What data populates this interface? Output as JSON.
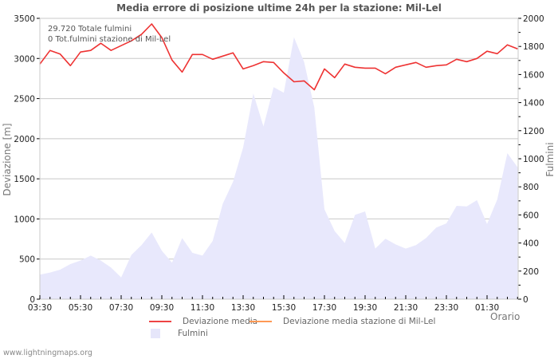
{
  "chart_data": {
    "type": "line",
    "title": "Media errore di posizione ultime 24h per la stazione: Mil-Lel",
    "xlabel": "Orario",
    "ylabel": "Deviazione  [m]",
    "y2label": "Fulmini",
    "ylim": [
      0,
      3500
    ],
    "y2lim": [
      0,
      2000
    ],
    "yticks": [
      0,
      500,
      1000,
      1500,
      2000,
      2500,
      3000,
      3500
    ],
    "y2ticks": [
      0,
      200,
      400,
      600,
      800,
      1000,
      1200,
      1400,
      1600,
      1800,
      2000
    ],
    "xticks": [
      "03:30",
      "05:30",
      "07:30",
      "09:30",
      "11:30",
      "13:30",
      "15:30",
      "17:30",
      "19:30",
      "21:30",
      "23:30",
      "01:30"
    ],
    "grid": true,
    "legend_position": "bottom",
    "annotations": [
      "29.720 Totale fulmini",
      "0 Tot.fulmini stazione di Mil-Lel"
    ],
    "x": [
      "03:30",
      "04:00",
      "04:30",
      "05:00",
      "05:30",
      "06:00",
      "06:30",
      "07:00",
      "07:30",
      "08:00",
      "08:30",
      "09:00",
      "09:30",
      "10:00",
      "10:30",
      "11:00",
      "11:30",
      "12:00",
      "12:30",
      "13:00",
      "13:30",
      "14:00",
      "14:30",
      "15:00",
      "15:30",
      "16:00",
      "16:30",
      "17:00",
      "17:30",
      "18:00",
      "18:30",
      "19:00",
      "19:30",
      "20:00",
      "20:30",
      "21:00",
      "21:30",
      "22:00",
      "22:30",
      "23:00",
      "23:30",
      "00:00",
      "00:30",
      "01:00",
      "01:30",
      "02:00",
      "02:30",
      "03:00"
    ],
    "series": [
      {
        "name": "Deviazione media",
        "axis": "left",
        "type": "line",
        "color": "#ee3333",
        "values": [
          2930,
          3100,
          3055,
          2910,
          3080,
          3100,
          3190,
          3100,
          3160,
          3220,
          3300,
          3430,
          3260,
          2980,
          2830,
          3050,
          3050,
          2990,
          3030,
          3070,
          2870,
          2910,
          2960,
          2950,
          2820,
          2710,
          2720,
          2610,
          2870,
          2760,
          2930,
          2890,
          2880,
          2880,
          2810,
          2890,
          2920,
          2950,
          2890,
          2910,
          2920,
          2990,
          2960,
          3000,
          3090,
          3060,
          3170,
          3120
        ]
      },
      {
        "name": "Deviazione media stazione di Mil-Lel",
        "axis": "left",
        "type": "line",
        "color": "#ff9944",
        "values": []
      },
      {
        "name": "Fulmini",
        "axis": "right",
        "type": "area",
        "color": "#e8e8fc",
        "values": [
          175,
          190,
          210,
          250,
          275,
          310,
          275,
          225,
          155,
          315,
          385,
          475,
          345,
          260,
          435,
          330,
          310,
          415,
          680,
          835,
          1080,
          1465,
          1230,
          1510,
          1470,
          1865,
          1690,
          1365,
          640,
          485,
          400,
          600,
          625,
          360,
          430,
          390,
          360,
          385,
          435,
          510,
          540,
          665,
          660,
          705,
          535,
          710,
          1040,
          940
        ]
      }
    ]
  },
  "header": {
    "title": "Media errore di posizione ultime 24h per la stazione: Mil-Lel"
  },
  "info": {
    "total_strikes": "29.720 Totale fulmini",
    "station_strikes": "0 Tot.fulmini stazione di Mil-Lel"
  },
  "legend": {
    "items": [
      {
        "label": "Deviazione media",
        "color": "#ee4444"
      },
      {
        "label": "Deviazione media stazione di Mil-Lel",
        "color": "#ff9955"
      },
      {
        "label": "Fulmini",
        "color": "#e6e6fa"
      }
    ]
  },
  "axes": {
    "y_left_title": "Deviazione  [m]",
    "y_right_title": "Fulmini",
    "x_title": "Orario"
  },
  "footer": {
    "credit": "www.lightningmaps.org"
  }
}
